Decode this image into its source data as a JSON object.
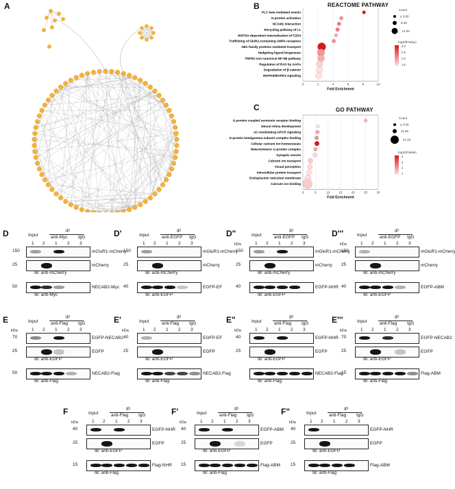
{
  "panels": {
    "a": "A",
    "b": "B",
    "c": "C"
  },
  "reactome": {
    "title": "REACTOME PATHWAY",
    "xlabel": "Fold Enrichment",
    "count_title": "Count",
    "count_values": [
      "3.00",
      "8.48",
      "14.00"
    ],
    "count_le": "≤",
    "scale_title": "-log10(PValue)",
    "scale_values": [
      "3.0",
      "2.5",
      "2.0",
      "1.5"
    ],
    "xticks": [
      "0",
      "2",
      "4",
      "6",
      "8",
      "10"
    ]
  },
  "go": {
    "title": "GO PATHWAY",
    "xlabel": "Fold Enrichment",
    "count_title": "Count",
    "count_values": [
      "3.00",
      "11.09",
      "41.00"
    ],
    "count_le": "≤",
    "scale_title": "-log10(PValue)",
    "scale_values": [
      "4",
      "3",
      "2",
      "1"
    ],
    "xticks": [
      "0",
      "5",
      "10",
      "15",
      "20",
      "25",
      "30"
    ]
  },
  "chart_data": [
    {
      "type": "scatter",
      "title": "REACTOME PATHWAY",
      "xlabel": "Fold Enrichment",
      "xlim": [
        0,
        10
      ],
      "categories": [
        "PLC beta mediated events",
        "G-protein activation",
        "NCAM1 interaction",
        "Recycling pathway of L1",
        "WNT5A-dependent internalization of FZD4",
        "Trafficking of GluR2-containing AMPA receptors",
        "ABC-family proteins mediated transport",
        "Hedgehog ligand biogenesis",
        "TNFR2 non-canonical NF-kB pathway",
        "Regulation of RAS by GAPs",
        "Degradation of β-catenin",
        "MAPK6/MAPK4 signaling"
      ],
      "fold_enrichment": [
        8.1,
        5.1,
        4.8,
        4.6,
        4.4,
        4.1,
        2.5,
        2.4,
        2.4,
        2.2,
        2.2,
        2.1
      ],
      "count": [
        3,
        4,
        4,
        4,
        3,
        4,
        14,
        12,
        11,
        10,
        10,
        10
      ],
      "neg_log10_p": [
        3.0,
        2.0,
        2.2,
        2.2,
        1.8,
        2.0,
        3.0,
        2.0,
        1.8,
        1.5,
        1.4,
        1.4
      ]
    },
    {
      "type": "scatter",
      "title": "GO PATHWAY",
      "xlabel": "Fold Enrichment",
      "xlim": [
        0,
        30
      ],
      "categories": [
        "G-protein coupled serotonin receptor binding",
        "Neural retina development",
        "AC-modulating GPCR signaling",
        "G-protein beta/gamma-subunit complex binding",
        "Cellular calcium ion homeostasis",
        "Heterotrimeric G-protein complex",
        "Synaptic vesicle",
        "Calcium ion transport",
        "Visual perception",
        "Intracellular protein transport",
        "Endoplasmic reticulum membrane",
        "Calcium ion binding"
      ],
      "fold_enrichment": [
        25.0,
        6.0,
        5.8,
        5.5,
        5.6,
        5.0,
        4.8,
        3.0,
        2.8,
        2.5,
        2.0,
        1.8
      ],
      "count": [
        3,
        4,
        6,
        6,
        11,
        5,
        9,
        12,
        13,
        16,
        22,
        41
      ],
      "neg_log10_p": [
        1.8,
        1.2,
        2.0,
        2.3,
        4.0,
        2.0,
        1.3,
        1.5,
        1.3,
        1.2,
        1.2,
        1.5
      ]
    }
  ],
  "blots": [
    {
      "label": "D",
      "header": {
        "input": "Input",
        "ip": "IP",
        "ip_ab": "anti-Myc",
        "igg": "IgG",
        "lanes": [
          "1",
          "2",
          "1",
          "2",
          "3"
        ]
      },
      "kda": "",
      "rows": [
        {
          "mw": "150",
          "name": "mCluR1-mCherry"
        },
        {
          "mw": "25",
          "name": "mCherry"
        },
        {
          "mw": "50",
          "name": "NECAB2-Myc"
        }
      ],
      "ibs": [
        "IB: anti-mCherry",
        "IB: anti-Myc"
      ]
    },
    {
      "label": "D'",
      "header": {
        "input": "Input",
        "ip": "IP",
        "ip_ab": "anti-EGFP",
        "igg": "IgG",
        "lanes": [
          "1",
          "2",
          "1",
          "2",
          "3"
        ]
      },
      "kda": "",
      "rows": [
        {
          "mw": "150",
          "name": "mGluR1-mCherry"
        },
        {
          "mw": "25",
          "name": "mCherry"
        },
        {
          "mw": "40",
          "name": "EGFP-EF"
        }
      ],
      "ibs": [
        "IB: anti-mCherry",
        "IB: anti-EGFP"
      ]
    },
    {
      "label": "D\"",
      "header": {
        "input": "Input",
        "ip": "IP",
        "ip_ab": "anti-EGFP",
        "igg": "IgG",
        "lanes": [
          "1",
          "2",
          "1",
          "2",
          "3"
        ]
      },
      "kda": "kDa",
      "rows": [
        {
          "mw": "150",
          "name": "mGluR1-mCherry"
        },
        {
          "mw": "25",
          "name": "mCherry"
        },
        {
          "mw": "40",
          "name": "EGFP-NHR"
        }
      ],
      "ibs": [
        "IB: anti-mCherry",
        "IB: anti-EGFP"
      ]
    },
    {
      "label": "D'''",
      "header": {
        "input": "Input",
        "ip": "IP",
        "ip_ab": "anti-EGFP",
        "igg": "IgG",
        "lanes": [
          "1",
          "2",
          "1",
          "2",
          "3"
        ]
      },
      "kda": "kDa",
      "rows": [
        {
          "mw": "150",
          "name": "mGluR1-mCherry"
        },
        {
          "mw": "25",
          "name": "mCherry"
        },
        {
          "mw": "40",
          "name": "EGFP-ABM"
        }
      ],
      "ibs": [
        "IB: anti-mCherry",
        "IB: anti-EGFP"
      ]
    },
    {
      "label": "E",
      "header": {
        "input": "Input",
        "ip": "IP",
        "ip_ab": "anti-Flag",
        "igg": "IgG",
        "lanes": [
          "1",
          "2",
          "1",
          "2",
          "3"
        ]
      },
      "kda": "kDa",
      "rows": [
        {
          "mw": "70",
          "name": "EGFP-NECAB2"
        },
        {
          "mw": "25",
          "name": "EGFP"
        },
        {
          "mw": "50",
          "name": "NECAB2-Flag"
        }
      ],
      "ibs": [
        "IB: anti-EGFP",
        "IB: anti-Flag"
      ]
    },
    {
      "label": "E'",
      "header": {
        "input": "Input",
        "ip": "IP",
        "ip_ab": "anti-Flag",
        "igg": "IgG",
        "lanes": [
          "1",
          "2",
          "1",
          "2",
          "3"
        ]
      },
      "kda": "kDa",
      "rows": [
        {
          "mw": "40",
          "name": "EGFP-EF"
        },
        {
          "mw": "25",
          "name": "EGFP"
        },
        {
          "mw": "",
          "name": "NECAB2-Flag"
        }
      ],
      "ibs": [
        "IB: anti-EGFP",
        "IB: anti-Flag"
      ]
    },
    {
      "label": "E\"",
      "header": {
        "input": "Input",
        "ip": "IP",
        "ip_ab": "anti-Flag",
        "igg": "IgG",
        "lanes": [
          "1",
          "2",
          "1",
          "2",
          "3"
        ]
      },
      "kda": "kDa",
      "rows": [
        {
          "mw": "40",
          "name": "EGFP-NHR"
        },
        {
          "mw": "25",
          "name": "EGFP"
        },
        {
          "mw": "",
          "name": "NECAB2-Flag"
        }
      ],
      "ibs": [
        "IB: anti-EGFP",
        "IB: anti-Flag"
      ]
    },
    {
      "label": "E'''",
      "header": {
        "input": "Input",
        "ip": "IP",
        "ip_ab": "anti-Flag",
        "igg": "IgG",
        "lanes": [
          "1",
          "2",
          "1",
          "2",
          "3"
        ]
      },
      "kda": "kDa",
      "rows": [
        {
          "mw": "70",
          "name": "EGFP-NECAB2"
        },
        {
          "mw": "25",
          "name": "EGFP"
        },
        {
          "mw": "15",
          "name": "Flag-ABM"
        }
      ],
      "ibs": [
        "IB: anti-EGFP",
        "IB: anti-Flag"
      ]
    },
    {
      "label": "F",
      "header": {
        "input": "Input",
        "ip": "IP",
        "ip_ab": "anti-Flag",
        "igg": "IgG",
        "lanes": [
          "1",
          "2",
          "1",
          "2",
          "3"
        ]
      },
      "kda": "kDa",
      "rows": [
        {
          "mw": "40",
          "name": "EGFP-NHR"
        },
        {
          "mw": "25",
          "name": "EGFP"
        },
        {
          "mw": "15",
          "name": "Flag-NHR"
        }
      ],
      "ibs": [
        "IB: anti-EGFP",
        "IB: anti-Flag"
      ]
    },
    {
      "label": "F'",
      "header": {
        "input": "Input",
        "ip": "IP",
        "ip_ab": "anti-Flag",
        "igg": "IgG",
        "lanes": [
          "1",
          "2",
          "1",
          "2",
          "3"
        ]
      },
      "kda": "kDa",
      "rows": [
        {
          "mw": "40",
          "name": "EGFP-ABM"
        },
        {
          "mw": "25",
          "name": "EGFP"
        },
        {
          "mw": "15",
          "name": "Flag-ABM"
        }
      ],
      "ibs": [
        "IB: anti-EGFP",
        "IB: anti-Flag"
      ]
    },
    {
      "label": "F\"",
      "header": {
        "input": "Input",
        "ip": "IP",
        "ip_ab": "anti-Flag",
        "igg": "IgG",
        "lanes": [
          "1",
          "2",
          "1",
          "2",
          "3"
        ]
      },
      "kda": "kDa",
      "rows": [
        {
          "mw": "40",
          "name": "EGFP-NHR"
        },
        {
          "mw": "25",
          "name": "EGFP"
        },
        {
          "mw": "15",
          "name": "Flag-ABM"
        }
      ],
      "ibs": [
        "IB: anti-EGFP",
        "IB: anti-Flag"
      ]
    }
  ],
  "colors": {
    "node": "#f2b23c",
    "edge": "#9a9a9a",
    "high": "#d7191c",
    "low": "#fde0e0"
  }
}
